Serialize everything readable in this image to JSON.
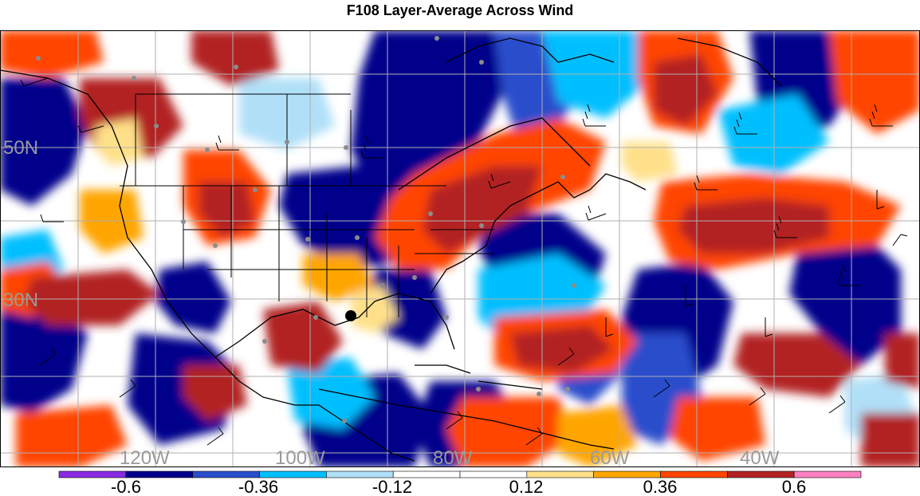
{
  "title": "F108 Layer-Average Across Wind",
  "map": {
    "longitude_labels": [
      "120W",
      "100W",
      "80W",
      "60W",
      "40W"
    ],
    "latitude_labels": [
      "50N",
      "30N"
    ],
    "marker": "storm-center-dot"
  },
  "colorbar": {
    "tick_labels": [
      "-0.6",
      "-0.36",
      "-0.12",
      "0.12",
      "0.36",
      "0.6"
    ],
    "colors": [
      "#8a2be2",
      "#00008b",
      "#2a4dcc",
      "#00bfff",
      "#b0e0f8",
      "#ffffff",
      "#ffffff",
      "#ffe08a",
      "#ffa500",
      "#ff4500",
      "#b22222",
      "#ff80c0"
    ]
  }
}
